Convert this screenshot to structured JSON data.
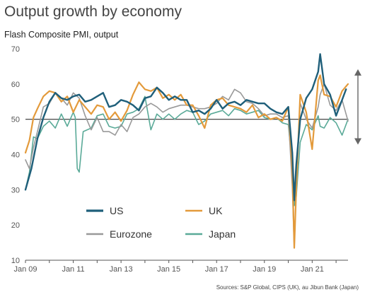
{
  "chart_data": {
    "type": "line",
    "title": "Output growth by economy",
    "subtitle": "Flash Composite PMI, output",
    "source": "Sources: S&P Global, CIPS (UK), au Jibun Bank (Japan)",
    "xlabel": "",
    "ylabel": "",
    "ylim": [
      10,
      70
    ],
    "yticks": [
      10,
      20,
      30,
      40,
      50,
      60,
      70
    ],
    "xlim": [
      "2009-01",
      "2022-07"
    ],
    "xtick_labels": [
      "Jan 09",
      "Jan 11",
      "Jan 13",
      "Jan 15",
      "Jan 17",
      "Jan 19",
      "Jan 21"
    ],
    "reference_line": 50,
    "grid": false,
    "legend": "bottom-left",
    "annotation": "double-headed arrow at right spanning 43 to 64",
    "series": [
      {
        "name": "US",
        "color": "#1f5f7a",
        "x": [
          "2009-01",
          "2009-04",
          "2009-07",
          "2009-10",
          "2010-01",
          "2010-04",
          "2010-07",
          "2010-10",
          "2011-01",
          "2011-04",
          "2011-07",
          "2011-10",
          "2012-01",
          "2012-04",
          "2012-07",
          "2012-10",
          "2013-01",
          "2013-04",
          "2013-07",
          "2013-10",
          "2014-01",
          "2014-04",
          "2014-07",
          "2014-10",
          "2015-01",
          "2015-04",
          "2015-07",
          "2015-10",
          "2016-01",
          "2016-04",
          "2016-07",
          "2016-10",
          "2017-01",
          "2017-04",
          "2017-07",
          "2017-10",
          "2018-01",
          "2018-04",
          "2018-07",
          "2018-10",
          "2019-01",
          "2019-04",
          "2019-07",
          "2019-10",
          "2020-01",
          "2020-03",
          "2020-04",
          "2020-05",
          "2020-07",
          "2020-10",
          "2021-01",
          "2021-04",
          "2021-05",
          "2021-07",
          "2021-10",
          "2022-01",
          "2022-04",
          "2022-06"
        ],
        "values": [
          30.0,
          36.0,
          44.5,
          50.5,
          55.0,
          57.5,
          56.0,
          55.5,
          56.5,
          57.0,
          55.0,
          55.5,
          56.5,
          57.5,
          53.5,
          54.0,
          55.5,
          55.0,
          54.0,
          52.5,
          56.0,
          56.5,
          59.0,
          57.5,
          55.5,
          56.5,
          55.5,
          55.5,
          52.0,
          52.5,
          51.5,
          53.0,
          55.5,
          53.0,
          54.5,
          55.0,
          54.0,
          55.5,
          55.0,
          54.5,
          54.5,
          53.0,
          52.0,
          51.5,
          53.5,
          40.5,
          27.0,
          37.0,
          50.0,
          56.0,
          58.5,
          63.5,
          68.5,
          60.0,
          57.0,
          51.0,
          55.5,
          58.5
        ]
      },
      {
        "name": "UK",
        "color": "#e39a3b",
        "x": [
          "2009-01",
          "2009-03",
          "2009-05",
          "2009-07",
          "2009-10",
          "2010-01",
          "2010-04",
          "2010-07",
          "2010-10",
          "2011-01",
          "2011-04",
          "2011-07",
          "2011-10",
          "2012-01",
          "2012-04",
          "2012-07",
          "2012-10",
          "2013-01",
          "2013-04",
          "2013-07",
          "2013-10",
          "2014-01",
          "2014-04",
          "2014-07",
          "2014-10",
          "2015-01",
          "2015-04",
          "2015-07",
          "2015-10",
          "2016-01",
          "2016-04",
          "2016-07",
          "2016-10",
          "2017-01",
          "2017-04",
          "2017-07",
          "2017-10",
          "2018-01",
          "2018-04",
          "2018-07",
          "2018-10",
          "2019-01",
          "2019-04",
          "2019-07",
          "2019-10",
          "2020-01",
          "2020-03",
          "2020-04",
          "2020-05",
          "2020-07",
          "2020-10",
          "2021-01",
          "2021-04",
          "2021-05",
          "2021-07",
          "2021-10",
          "2022-01",
          "2022-04",
          "2022-07"
        ],
        "values": [
          40.5,
          44.0,
          50.5,
          53.0,
          56.5,
          58.0,
          57.5,
          55.0,
          56.5,
          52.0,
          55.5,
          53.5,
          51.5,
          54.0,
          53.5,
          50.0,
          52.0,
          49.5,
          52.5,
          57.0,
          60.5,
          58.5,
          58.0,
          59.0,
          56.0,
          57.0,
          55.5,
          57.0,
          54.0,
          54.0,
          51.0,
          47.5,
          54.0,
          55.5,
          56.0,
          54.0,
          53.5,
          53.0,
          52.0,
          54.0,
          50.5,
          51.5,
          50.0,
          50.5,
          49.5,
          53.5,
          36.0,
          13.5,
          30.0,
          57.0,
          52.0,
          41.5,
          61.0,
          62.5,
          57.0,
          56.5,
          53.5,
          58.0,
          60.0
        ]
      },
      {
        "name": "Eurozone",
        "color": "#999999",
        "x": [
          "2009-01",
          "2009-03",
          "2009-05",
          "2009-07",
          "2009-10",
          "2010-01",
          "2010-04",
          "2010-07",
          "2010-10",
          "2011-01",
          "2011-04",
          "2011-07",
          "2011-10",
          "2012-01",
          "2012-04",
          "2012-07",
          "2012-10",
          "2013-01",
          "2013-04",
          "2013-07",
          "2013-10",
          "2014-01",
          "2014-04",
          "2014-07",
          "2014-10",
          "2015-01",
          "2015-04",
          "2015-07",
          "2015-10",
          "2016-01",
          "2016-04",
          "2016-07",
          "2016-10",
          "2017-01",
          "2017-04",
          "2017-07",
          "2017-10",
          "2018-01",
          "2018-04",
          "2018-07",
          "2018-10",
          "2019-01",
          "2019-04",
          "2019-07",
          "2019-10",
          "2020-01",
          "2020-03",
          "2020-04",
          "2020-05",
          "2020-07",
          "2020-10",
          "2021-01",
          "2021-04",
          "2021-05",
          "2021-07",
          "2021-10",
          "2022-01",
          "2022-04",
          "2022-07"
        ],
        "values": [
          38.5,
          36.0,
          42.0,
          46.5,
          53.5,
          54.5,
          57.5,
          56.0,
          54.0,
          57.5,
          56.0,
          51.0,
          47.0,
          50.5,
          46.5,
          46.5,
          45.5,
          48.5,
          46.5,
          50.5,
          51.5,
          53.5,
          54.5,
          53.5,
          52.0,
          53.0,
          53.5,
          54.0,
          54.0,
          53.5,
          53.0,
          53.0,
          53.5,
          54.5,
          56.5,
          55.5,
          58.5,
          57.5,
          55.0,
          54.5,
          53.0,
          51.0,
          51.5,
          51.5,
          50.5,
          51.0,
          31.0,
          13.5,
          31.0,
          54.5,
          50.0,
          47.5,
          53.5,
          57.0,
          60.0,
          54.0,
          52.5,
          55.5,
          49.5
        ]
      },
      {
        "name": "Japan",
        "color": "#5aaa98",
        "x": [
          "2009-01",
          "2009-03",
          "2009-05",
          "2009-07",
          "2009-10",
          "2010-01",
          "2010-04",
          "2010-07",
          "2010-10",
          "2011-01",
          "2011-02",
          "2011-03",
          "2011-04",
          "2011-06",
          "2011-10",
          "2012-01",
          "2012-04",
          "2012-07",
          "2012-10",
          "2013-01",
          "2013-04",
          "2013-07",
          "2013-10",
          "2014-01",
          "2014-04",
          "2014-07",
          "2014-10",
          "2015-01",
          "2015-04",
          "2015-07",
          "2015-10",
          "2016-01",
          "2016-04",
          "2016-07",
          "2016-10",
          "2017-01",
          "2017-04",
          "2017-07",
          "2017-10",
          "2018-01",
          "2018-04",
          "2018-07",
          "2018-10",
          "2019-01",
          "2019-04",
          "2019-07",
          "2019-10",
          "2020-01",
          "2020-03",
          "2020-04",
          "2020-05",
          "2020-07",
          "2020-10",
          "2021-01",
          "2021-04",
          "2021-05",
          "2021-07",
          "2021-10",
          "2022-01",
          "2022-04",
          "2022-07"
        ],
        "values": [
          30.0,
          35.0,
          45.0,
          44.5,
          48.0,
          49.5,
          47.5,
          51.5,
          48.0,
          52.0,
          50.5,
          36.0,
          35.0,
          46.5,
          47.5,
          51.0,
          51.5,
          48.0,
          47.5,
          48.0,
          51.5,
          52.0,
          53.0,
          56.5,
          47.0,
          51.5,
          50.0,
          51.5,
          50.0,
          51.5,
          52.5,
          52.0,
          48.5,
          49.5,
          51.5,
          52.0,
          52.5,
          51.0,
          53.0,
          52.5,
          51.5,
          52.0,
          52.5,
          50.5,
          50.0,
          50.5,
          49.0,
          48.5,
          36.5,
          25.5,
          28.0,
          43.5,
          48.5,
          47.0,
          51.0,
          48.0,
          47.5,
          50.5,
          49.0,
          45.5,
          50.0
        ]
      }
    ]
  }
}
